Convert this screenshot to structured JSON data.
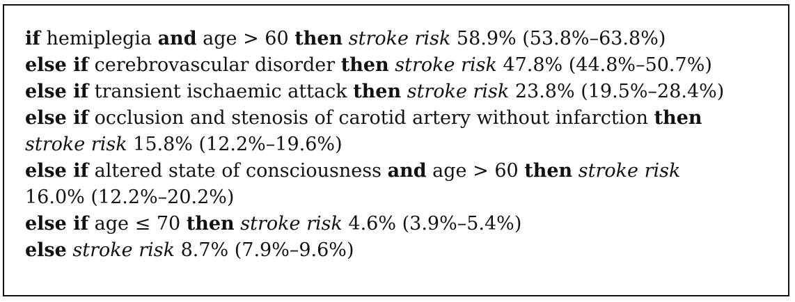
{
  "rules": [
    {
      "lines": [
        [
          {
            "t": "if",
            "s": "kw"
          },
          {
            "t": " hemiplegia "
          },
          {
            "t": "and",
            "s": "kw"
          },
          {
            "t": " age > 60 "
          },
          {
            "t": "then",
            "s": "kw"
          },
          {
            "t": " "
          },
          {
            "t": "stroke risk",
            "s": "it"
          },
          {
            "t": " 58.9% (53.8%–63.8%)"
          }
        ]
      ]
    },
    {
      "lines": [
        [
          {
            "t": "else if",
            "s": "kw"
          },
          {
            "t": " cerebrovascular disorder "
          },
          {
            "t": "then",
            "s": "kw"
          },
          {
            "t": " "
          },
          {
            "t": "stroke risk",
            "s": "it"
          },
          {
            "t": " 47.8% (44.8%–50.7%)"
          }
        ]
      ]
    },
    {
      "lines": [
        [
          {
            "t": "else if",
            "s": "kw"
          },
          {
            "t": " transient ischaemic attack "
          },
          {
            "t": "then",
            "s": "kw"
          },
          {
            "t": " "
          },
          {
            "t": "stroke risk",
            "s": "it"
          },
          {
            "t": " 23.8% (19.5%–28.4%)"
          }
        ]
      ]
    },
    {
      "lines": [
        [
          {
            "t": "else if",
            "s": "kw"
          },
          {
            "t": " occlusion and stenosis of carotid artery without infarction "
          },
          {
            "t": "then",
            "s": "kw"
          }
        ],
        [
          {
            "t": "stroke risk",
            "s": "it"
          },
          {
            "t": " 15.8% (12.2%–19.6%)"
          }
        ]
      ]
    },
    {
      "lines": [
        [
          {
            "t": "else if",
            "s": "kw"
          },
          {
            "t": " altered state of consciousness "
          },
          {
            "t": "and",
            "s": "kw"
          },
          {
            "t": " age > 60 "
          },
          {
            "t": "then",
            "s": "kw"
          },
          {
            "t": " "
          },
          {
            "t": "stroke risk",
            "s": "it"
          }
        ],
        [
          {
            "t": "16.0% (12.2%–20.2%)"
          }
        ]
      ]
    },
    {
      "lines": [
        [
          {
            "t": "else if",
            "s": "kw"
          },
          {
            "t": " age ≤ 70 "
          },
          {
            "t": "then",
            "s": "kw"
          },
          {
            "t": " "
          },
          {
            "t": "stroke risk",
            "s": "it"
          },
          {
            "t": " 4.6% (3.9%–5.4%)"
          }
        ]
      ]
    },
    {
      "lines": [
        [
          {
            "t": "else",
            "s": "kw"
          },
          {
            "t": " "
          },
          {
            "t": "stroke risk",
            "s": "it"
          },
          {
            "t": " 8.7% (7.9%–9.6%)"
          }
        ]
      ]
    }
  ]
}
